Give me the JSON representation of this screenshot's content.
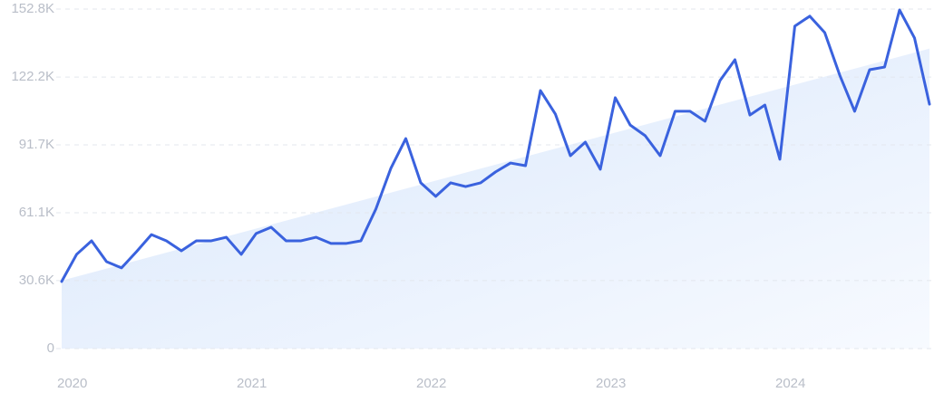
{
  "chart_data": {
    "type": "line",
    "categories": [
      "2020",
      null,
      null,
      null,
      null,
      null,
      null,
      null,
      null,
      null,
      null,
      null,
      "2021",
      null,
      null,
      null,
      null,
      null,
      null,
      null,
      null,
      null,
      null,
      null,
      "2022",
      null,
      null,
      null,
      null,
      null,
      null,
      null,
      null,
      null,
      null,
      null,
      "2023",
      null,
      null,
      null,
      null,
      null,
      null,
      null,
      null,
      null,
      null,
      null,
      "2024",
      null,
      null,
      null,
      null,
      null,
      null,
      null,
      null,
      null,
      null
    ],
    "values": [
      30200,
      42400,
      48500,
      39100,
      36300,
      43600,
      51300,
      48500,
      44000,
      48500,
      48500,
      50100,
      42400,
      51800,
      54600,
      48500,
      48500,
      50100,
      47300,
      47300,
      48500,
      62800,
      81100,
      94500,
      74600,
      68500,
      74600,
      72900,
      74600,
      79500,
      83500,
      82300,
      116100,
      105500,
      86800,
      92900,
      80700,
      112900,
      100600,
      95800,
      86800,
      106800,
      106800,
      102300,
      120600,
      130000,
      105100,
      109600,
      85200,
      145100,
      149600,
      142200,
      123100,
      106800,
      125500,
      126700,
      152400,
      139800,
      110000
    ],
    "color": "#3a62de",
    "trend": [
      30600,
      135000
    ],
    "ylim": [
      0,
      152800
    ],
    "yticks": [
      0,
      {
        "value": 30600,
        "label": "30.6K"
      },
      {
        "value": 61100,
        "label": "61.1K"
      },
      {
        "value": 91700,
        "label": "91.7K"
      },
      {
        "value": 122200,
        "label": "122.2K"
      },
      {
        "value": 152800,
        "label": "152.8K"
      }
    ],
    "grid": true
  }
}
